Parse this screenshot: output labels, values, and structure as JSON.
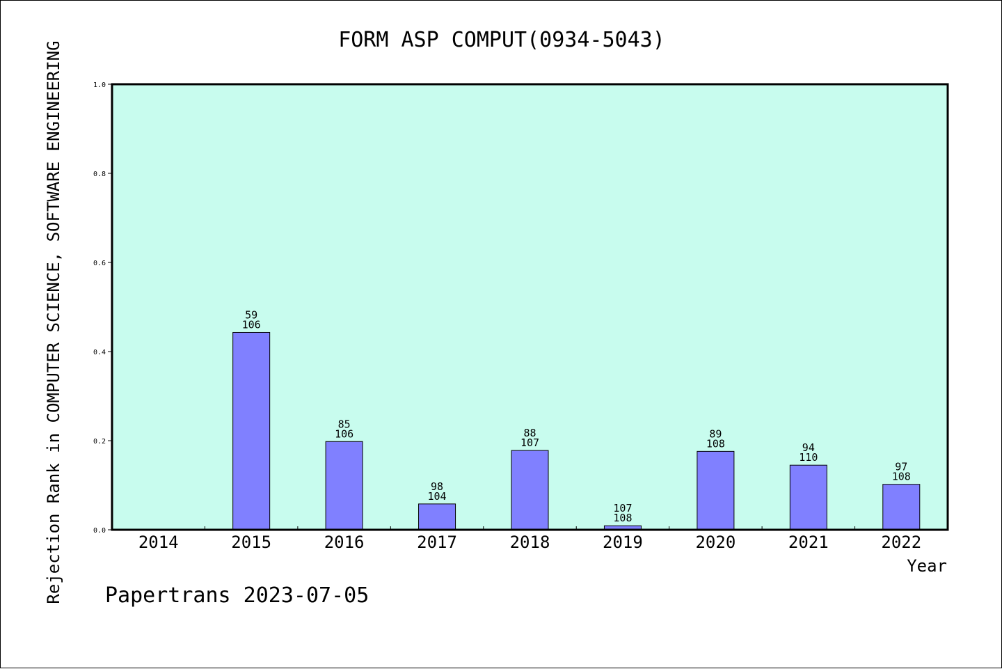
{
  "chart_data": {
    "type": "bar",
    "title": "FORM ASP COMPUT(0934-5043)",
    "xlabel": "Year",
    "ylabel": "Rejection Rank in COMPUTER SCIENCE, SOFTWARE ENGINEERING",
    "categories": [
      "2014",
      "2015",
      "2016",
      "2017",
      "2018",
      "2019",
      "2020",
      "2021",
      "2022"
    ],
    "values": [
      null,
      0.443,
      0.198,
      0.058,
      0.178,
      0.009,
      0.176,
      0.145,
      0.102
    ],
    "rank": [
      null,
      "59",
      "85",
      "98",
      "88",
      "107",
      "89",
      "94",
      "97"
    ],
    "total": [
      null,
      "106",
      "106",
      "104",
      "107",
      "108",
      "108",
      "110",
      "108"
    ],
    "ylim": [
      0,
      1.0
    ],
    "yticks": [
      "0.0",
      "0.2",
      "0.4",
      "0.6",
      "0.8",
      "1.0"
    ],
    "grid": false,
    "colors": {
      "plot_background": "#c8fcee",
      "bar_fill": "#8080ff",
      "bar_stroke": "#000000"
    }
  },
  "footer": "Papertrans 2023-07-05"
}
